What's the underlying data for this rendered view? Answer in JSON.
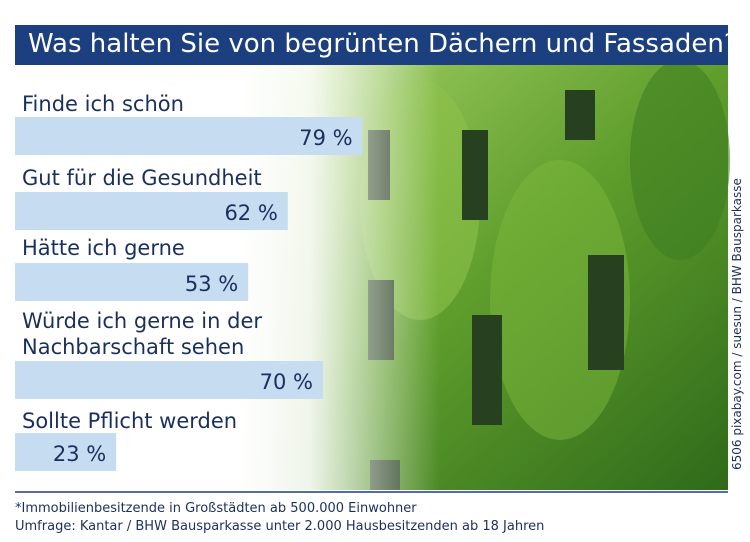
{
  "chart_data": {
    "type": "bar",
    "title": "Was halten Sie von begrünten Dächern und Fassaden?*",
    "categories": [
      "Finde ich schön",
      "Gut für die Gesundheit",
      "Hätte ich gerne",
      "Würde ich gerne in der\nNachbarschaft sehen",
      "Sollte Pflicht werden"
    ],
    "values": [
      79,
      62,
      53,
      70,
      23
    ],
    "value_labels": [
      "79 %",
      "62 %",
      "53 %",
      "70 %",
      "23 %"
    ],
    "color": "#c6dcf0"
  },
  "footnote": "*Immobilienbesitzende in Großstädten ab 500.000 Einwohner",
  "source": "Umfrage: Kantar / BHW Bausparkasse unter 2.000 Hausbesitzenden ab 18 Jahren",
  "credit": "6506 pixabay.com / suesun / BHW Bausparkasse"
}
